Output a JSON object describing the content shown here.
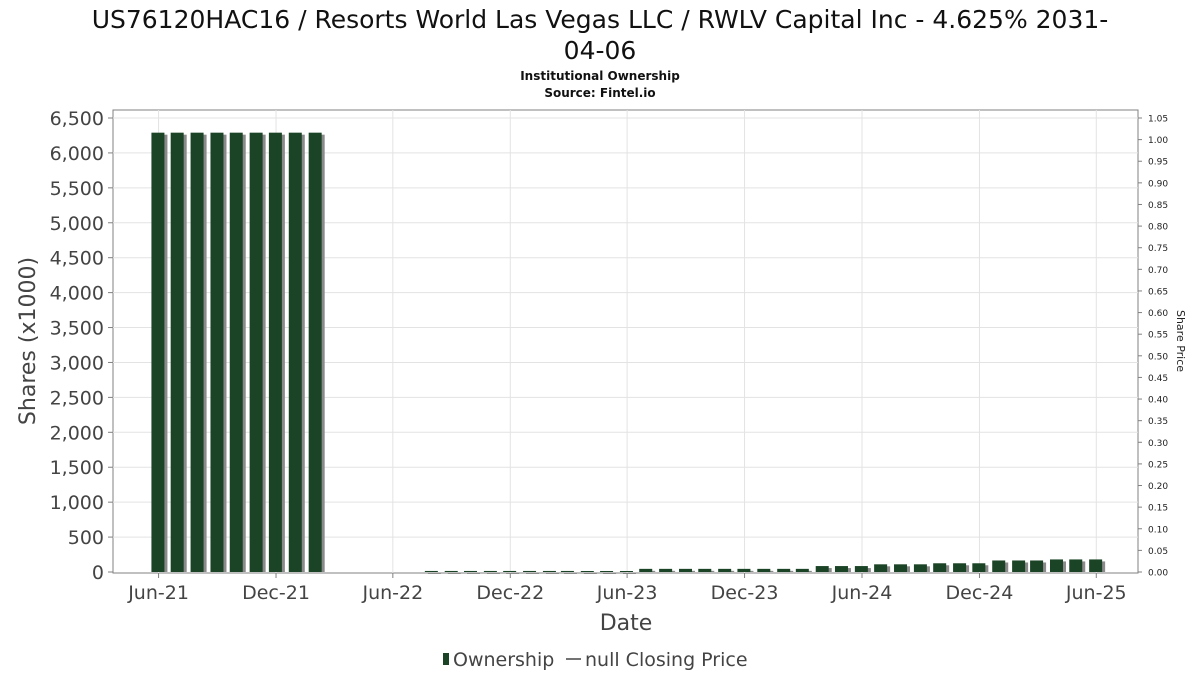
{
  "chart_data": {
    "type": "bar",
    "title_line1": "US76120HAC16 / Resorts World Las Vegas LLC / RWLV Capital Inc - 4.625% 2031-",
    "title_line2": "04-06",
    "subtitle": "Institutional Ownership",
    "source": "Source: Fintel.io",
    "xlabel": "Date",
    "ylabel": "Shares (x1000)",
    "y2label": "Share Price",
    "ylim": [
      0,
      6500
    ],
    "y2lim": [
      0,
      1.05
    ],
    "grid": true,
    "legend_position": "bottom-center",
    "yticks": [
      "0",
      "500",
      "1,000",
      "1,500",
      "2,000",
      "2,500",
      "3,000",
      "3,500",
      "4,000",
      "4,500",
      "5,000",
      "5,500",
      "6,000",
      "6,500"
    ],
    "ytick_values": [
      0,
      500,
      1000,
      1500,
      2000,
      2500,
      3000,
      3500,
      4000,
      4500,
      5000,
      5500,
      6000,
      6500
    ],
    "y2ticks": [
      "0.00",
      "0.05",
      "0.10",
      "0.15",
      "0.20",
      "0.25",
      "0.30",
      "0.35",
      "0.40",
      "0.45",
      "0.50",
      "0.55",
      "0.60",
      "0.65",
      "0.70",
      "0.75",
      "0.80",
      "0.85",
      "0.90",
      "0.95",
      "1.00",
      "1.05"
    ],
    "xticks": [
      "Jun-21",
      "Dec-21",
      "Jun-22",
      "Dec-22",
      "Jun-23",
      "Dec-23",
      "Jun-24",
      "Dec-24",
      "Jun-25"
    ],
    "xrange": [
      "2021-03-22",
      "2025-08-05"
    ],
    "bar_color": "#1b4426",
    "shadow_color": "#8a8a8a",
    "legend": {
      "ownership": "Ownership",
      "price": "null Closing Price"
    },
    "series": [
      {
        "name": "Ownership",
        "points": [
          {
            "x": "2021-05-31",
            "y": 6290
          },
          {
            "x": "2021-06-30",
            "y": 6290
          },
          {
            "x": "2021-07-31",
            "y": 6290
          },
          {
            "x": "2021-08-31",
            "y": 6290
          },
          {
            "x": "2021-09-30",
            "y": 6290
          },
          {
            "x": "2021-10-31",
            "y": 6290
          },
          {
            "x": "2021-11-30",
            "y": 6290
          },
          {
            "x": "2021-12-31",
            "y": 6290
          },
          {
            "x": "2022-01-31",
            "y": 6290
          },
          {
            "x": "2022-07-31",
            "y": 15
          },
          {
            "x": "2022-08-31",
            "y": 15
          },
          {
            "x": "2022-09-30",
            "y": 15
          },
          {
            "x": "2022-10-31",
            "y": 15
          },
          {
            "x": "2022-11-30",
            "y": 15
          },
          {
            "x": "2022-12-31",
            "y": 15
          },
          {
            "x": "2023-01-31",
            "y": 15
          },
          {
            "x": "2023-02-28",
            "y": 15
          },
          {
            "x": "2023-03-31",
            "y": 8
          },
          {
            "x": "2023-04-30",
            "y": 8
          },
          {
            "x": "2023-05-31",
            "y": 8
          },
          {
            "x": "2023-06-30",
            "y": 45
          },
          {
            "x": "2023-07-31",
            "y": 45
          },
          {
            "x": "2023-08-31",
            "y": 45
          },
          {
            "x": "2023-09-30",
            "y": 45
          },
          {
            "x": "2023-10-31",
            "y": 45
          },
          {
            "x": "2023-11-30",
            "y": 45
          },
          {
            "x": "2023-12-31",
            "y": 45
          },
          {
            "x": "2024-01-31",
            "y": 45
          },
          {
            "x": "2024-02-29",
            "y": 45
          },
          {
            "x": "2024-03-31",
            "y": 85
          },
          {
            "x": "2024-04-30",
            "y": 85
          },
          {
            "x": "2024-05-31",
            "y": 85
          },
          {
            "x": "2024-06-30",
            "y": 110
          },
          {
            "x": "2024-07-31",
            "y": 110
          },
          {
            "x": "2024-08-31",
            "y": 110
          },
          {
            "x": "2024-09-30",
            "y": 125
          },
          {
            "x": "2024-10-31",
            "y": 125
          },
          {
            "x": "2024-11-30",
            "y": 125
          },
          {
            "x": "2024-12-31",
            "y": 165
          },
          {
            "x": "2025-01-31",
            "y": 165
          },
          {
            "x": "2025-02-28",
            "y": 165
          },
          {
            "x": "2025-03-31",
            "y": 180
          },
          {
            "x": "2025-04-30",
            "y": 180
          },
          {
            "x": "2025-05-31",
            "y": 180
          }
        ]
      }
    ]
  }
}
